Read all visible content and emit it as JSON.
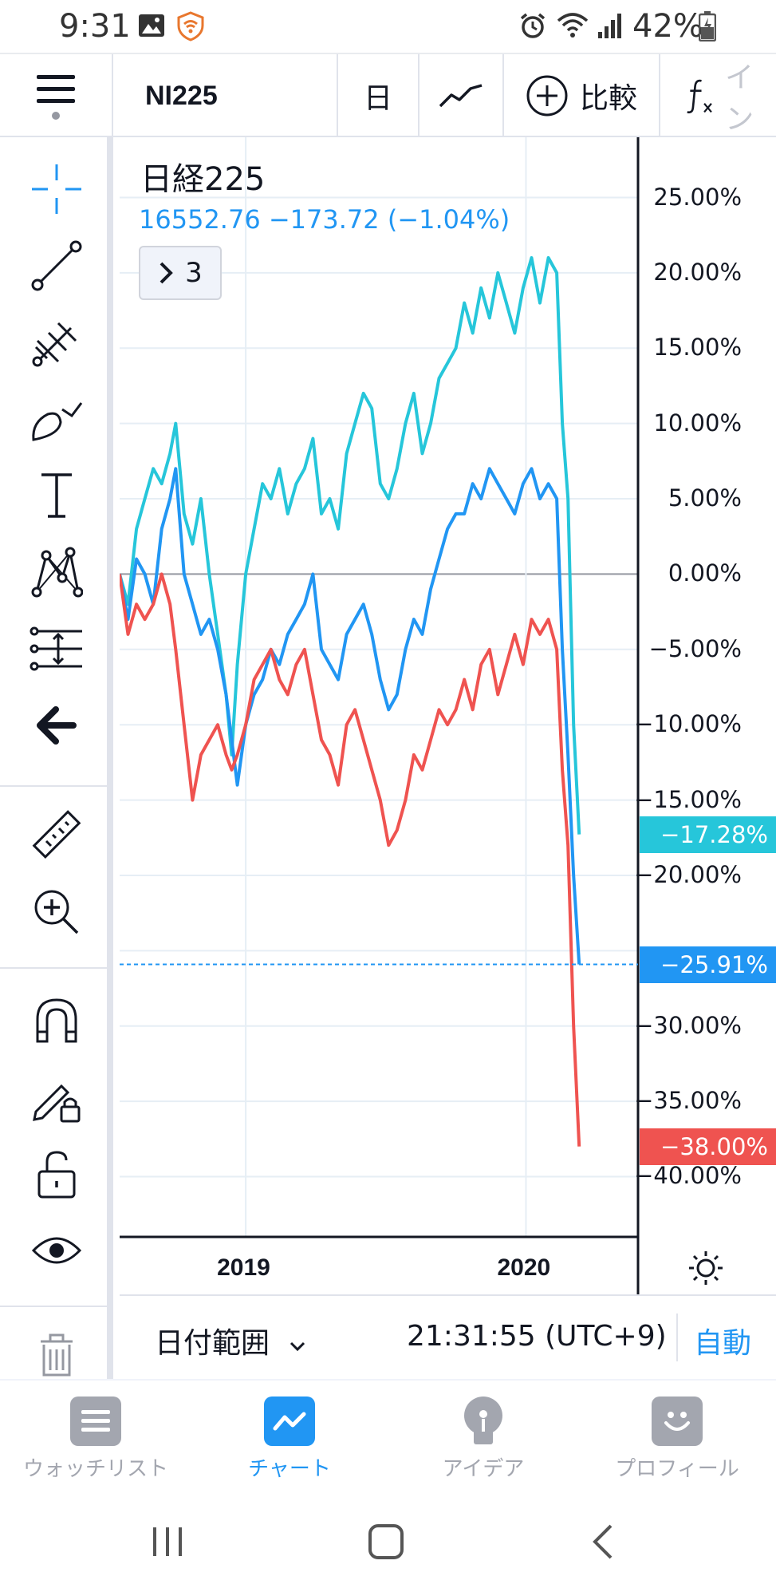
{
  "status": {
    "time": "9:31",
    "battery": "42%"
  },
  "toolbar": {
    "symbol": "NI225",
    "interval": "日",
    "compare_label": "比較",
    "indicators_label": "イン"
  },
  "legend": {
    "title": "日経225",
    "values": "16552.76  −173.72 (−1.04%)",
    "badge": "3"
  },
  "chart_data": {
    "type": "line",
    "xlabel_ticks": [
      "2019",
      "2020"
    ],
    "y_ticks": [
      "25.00%",
      "20.00%",
      "15.00%",
      "10.00%",
      "5.00%",
      "0.00%",
      "−5.00%",
      "−10.00%",
      "−15.00%",
      "−20.00%",
      "−30.00%",
      "−35.00%",
      "−40.00%"
    ],
    "y_unit": "%",
    "ylim": [
      -44,
      29
    ],
    "x_start": 2018.55,
    "x_end": 2020.4,
    "series": [
      {
        "color": "#26c6da",
        "last_label": "−17.28%",
        "points": [
          [
            2018.55,
            0
          ],
          [
            2018.58,
            -2
          ],
          [
            2018.61,
            3
          ],
          [
            2018.64,
            5
          ],
          [
            2018.67,
            7
          ],
          [
            2018.7,
            6
          ],
          [
            2018.73,
            8
          ],
          [
            2018.75,
            10
          ],
          [
            2018.78,
            4
          ],
          [
            2018.81,
            2
          ],
          [
            2018.84,
            5
          ],
          [
            2018.87,
            0
          ],
          [
            2018.9,
            -4
          ],
          [
            2018.93,
            -8
          ],
          [
            2018.95,
            -12
          ],
          [
            2018.97,
            -6
          ],
          [
            2019.0,
            0
          ],
          [
            2019.03,
            3
          ],
          [
            2019.06,
            6
          ],
          [
            2019.09,
            5
          ],
          [
            2019.12,
            7
          ],
          [
            2019.15,
            4
          ],
          [
            2019.18,
            6
          ],
          [
            2019.21,
            7
          ],
          [
            2019.24,
            9
          ],
          [
            2019.27,
            4
          ],
          [
            2019.3,
            5
          ],
          [
            2019.33,
            3
          ],
          [
            2019.36,
            8
          ],
          [
            2019.39,
            10
          ],
          [
            2019.42,
            12
          ],
          [
            2019.45,
            11
          ],
          [
            2019.48,
            6
          ],
          [
            2019.51,
            5
          ],
          [
            2019.54,
            7
          ],
          [
            2019.57,
            10
          ],
          [
            2019.6,
            12
          ],
          [
            2019.63,
            8
          ],
          [
            2019.66,
            10
          ],
          [
            2019.69,
            13
          ],
          [
            2019.72,
            14
          ],
          [
            2019.75,
            15
          ],
          [
            2019.78,
            18
          ],
          [
            2019.81,
            16
          ],
          [
            2019.84,
            19
          ],
          [
            2019.87,
            17
          ],
          [
            2019.9,
            20
          ],
          [
            2019.93,
            18
          ],
          [
            2019.96,
            16
          ],
          [
            2019.99,
            19
          ],
          [
            2020.02,
            21
          ],
          [
            2020.05,
            18
          ],
          [
            2020.08,
            21
          ],
          [
            2020.11,
            20
          ],
          [
            2020.13,
            10
          ],
          [
            2020.15,
            5
          ],
          [
            2020.17,
            -10
          ],
          [
            2020.19,
            -17.28
          ]
        ]
      },
      {
        "color": "#2196f3",
        "last_label": "−25.91%",
        "points": [
          [
            2018.55,
            0
          ],
          [
            2018.58,
            -3
          ],
          [
            2018.61,
            1
          ],
          [
            2018.64,
            0
          ],
          [
            2018.67,
            -2
          ],
          [
            2018.7,
            3
          ],
          [
            2018.73,
            5
          ],
          [
            2018.75,
            7
          ],
          [
            2018.78,
            0
          ],
          [
            2018.81,
            -2
          ],
          [
            2018.84,
            -4
          ],
          [
            2018.87,
            -3
          ],
          [
            2018.9,
            -5
          ],
          [
            2018.93,
            -8
          ],
          [
            2018.95,
            -11
          ],
          [
            2018.97,
            -14
          ],
          [
            2019.0,
            -10
          ],
          [
            2019.03,
            -8
          ],
          [
            2019.06,
            -7
          ],
          [
            2019.09,
            -5
          ],
          [
            2019.12,
            -6
          ],
          [
            2019.15,
            -4
          ],
          [
            2019.18,
            -3
          ],
          [
            2019.21,
            -2
          ],
          [
            2019.24,
            0
          ],
          [
            2019.27,
            -5
          ],
          [
            2019.3,
            -6
          ],
          [
            2019.33,
            -7
          ],
          [
            2019.36,
            -4
          ],
          [
            2019.39,
            -3
          ],
          [
            2019.42,
            -2
          ],
          [
            2019.45,
            -4
          ],
          [
            2019.48,
            -7
          ],
          [
            2019.51,
            -9
          ],
          [
            2019.54,
            -8
          ],
          [
            2019.57,
            -5
          ],
          [
            2019.6,
            -3
          ],
          [
            2019.63,
            -4
          ],
          [
            2019.66,
            -1
          ],
          [
            2019.69,
            1
          ],
          [
            2019.72,
            3
          ],
          [
            2019.75,
            4
          ],
          [
            2019.78,
            4
          ],
          [
            2019.81,
            6
          ],
          [
            2019.84,
            5
          ],
          [
            2019.87,
            7
          ],
          [
            2019.9,
            6
          ],
          [
            2019.93,
            5
          ],
          [
            2019.96,
            4
          ],
          [
            2019.99,
            6
          ],
          [
            2020.02,
            7
          ],
          [
            2020.05,
            5
          ],
          [
            2020.08,
            6
          ],
          [
            2020.11,
            5
          ],
          [
            2020.13,
            -5
          ],
          [
            2020.15,
            -12
          ],
          [
            2020.17,
            -20
          ],
          [
            2020.19,
            -25.91
          ]
        ]
      },
      {
        "color": "#ef5350",
        "last_label": "−38.00%",
        "points": [
          [
            2018.55,
            0
          ],
          [
            2018.58,
            -4
          ],
          [
            2018.61,
            -2
          ],
          [
            2018.64,
            -3
          ],
          [
            2018.67,
            -2
          ],
          [
            2018.7,
            0
          ],
          [
            2018.73,
            -2
          ],
          [
            2018.75,
            -5
          ],
          [
            2018.78,
            -10
          ],
          [
            2018.81,
            -15
          ],
          [
            2018.84,
            -12
          ],
          [
            2018.87,
            -11
          ],
          [
            2018.9,
            -10
          ],
          [
            2018.93,
            -12
          ],
          [
            2018.95,
            -13
          ],
          [
            2018.97,
            -12
          ],
          [
            2019.0,
            -10
          ],
          [
            2019.03,
            -7
          ],
          [
            2019.06,
            -6
          ],
          [
            2019.09,
            -5
          ],
          [
            2019.12,
            -7
          ],
          [
            2019.15,
            -8
          ],
          [
            2019.18,
            -6
          ],
          [
            2019.21,
            -5
          ],
          [
            2019.24,
            -8
          ],
          [
            2019.27,
            -11
          ],
          [
            2019.3,
            -12
          ],
          [
            2019.33,
            -14
          ],
          [
            2019.36,
            -10
          ],
          [
            2019.39,
            -9
          ],
          [
            2019.42,
            -11
          ],
          [
            2019.45,
            -13
          ],
          [
            2019.48,
            -15
          ],
          [
            2019.51,
            -18
          ],
          [
            2019.54,
            -17
          ],
          [
            2019.57,
            -15
          ],
          [
            2019.6,
            -12
          ],
          [
            2019.63,
            -13
          ],
          [
            2019.66,
            -11
          ],
          [
            2019.69,
            -9
          ],
          [
            2019.72,
            -10
          ],
          [
            2019.75,
            -9
          ],
          [
            2019.78,
            -7
          ],
          [
            2019.81,
            -9
          ],
          [
            2019.84,
            -6
          ],
          [
            2019.87,
            -5
          ],
          [
            2019.9,
            -8
          ],
          [
            2019.93,
            -6
          ],
          [
            2019.96,
            -4
          ],
          [
            2019.99,
            -6
          ],
          [
            2020.02,
            -3
          ],
          [
            2020.05,
            -4
          ],
          [
            2020.08,
            -3
          ],
          [
            2020.11,
            -5
          ],
          [
            2020.13,
            -13
          ],
          [
            2020.15,
            -18
          ],
          [
            2020.17,
            -30
          ],
          [
            2020.19,
            -38
          ]
        ]
      }
    ],
    "current_line_value": -25.91,
    "grid": true
  },
  "bottom": {
    "date_range": "日付範囲",
    "clock": "21:31:55 (UTC+9)",
    "auto": "自動"
  },
  "nav": {
    "watchlist": "ウォッチリスト",
    "chart": "チャート",
    "ideas": "アイデア",
    "profile": "プロフィール"
  },
  "colors": {
    "accent": "#2196f3",
    "cyan": "#26c6da",
    "red": "#ef5350",
    "nav_inactive": "#a3a6af"
  }
}
